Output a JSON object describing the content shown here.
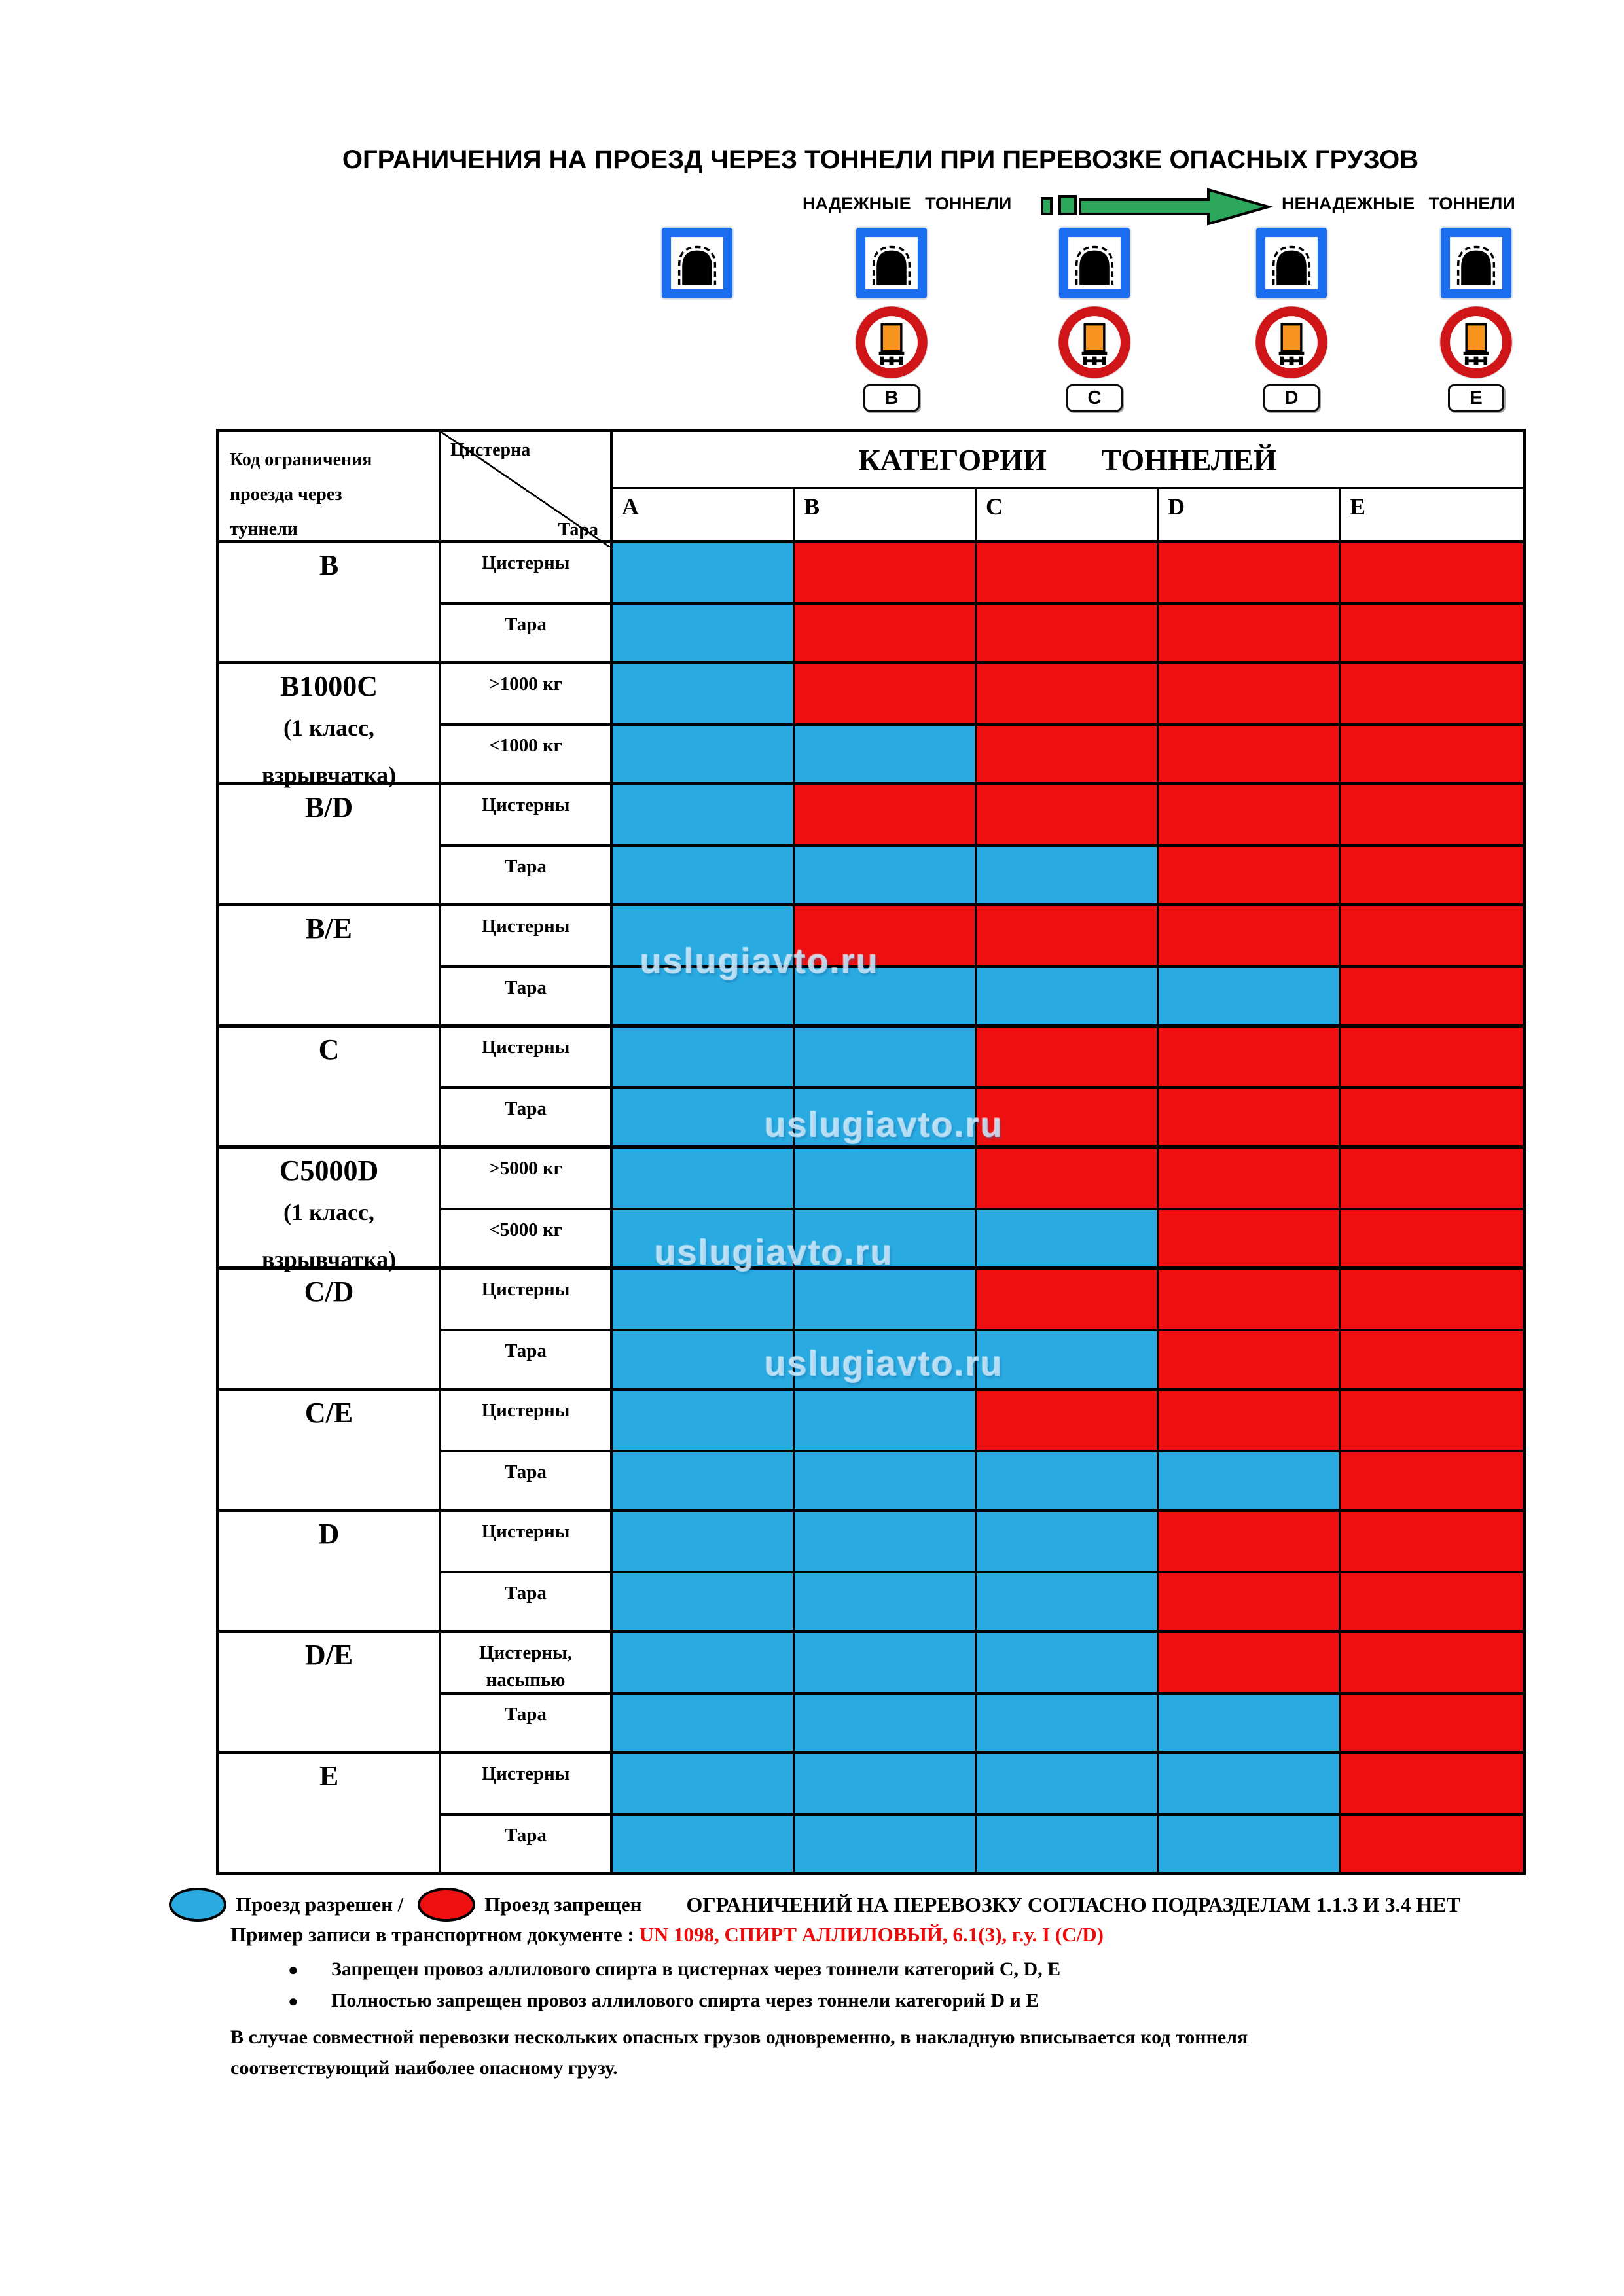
{
  "page": {
    "title": "ОГРАНИЧЕНИЯ НА ПРОЕЗД ЧЕРЕЗ ТОННЕЛИ ПРИ ПЕРЕВОЗКЕ ОПАСНЫХ ГРУЗОВ"
  },
  "header": {
    "safe_tunnels_label": "НАДЕЖНЫЕ ТОННЕЛИ",
    "unsafe_tunnels_label": "НЕНАДЕЖНЫЕ ТОННЕЛИ",
    "sign_plates": [
      "B",
      "C",
      "D",
      "E"
    ]
  },
  "table": {
    "corner_label": "Код ограничения\nпроезда через\nтуннели",
    "diag_top": "Цистерна",
    "diag_bottom": "Тара",
    "categories_title": "КАТЕГОРИИ ТОННЕЛЕЙ",
    "category_cols": [
      "A",
      "B",
      "C",
      "D",
      "E"
    ],
    "groups": [
      {
        "code": "B",
        "code_note": "",
        "rows": [
          {
            "label": "Цистерны",
            "cells": [
              1,
              0,
              0,
              0,
              0
            ]
          },
          {
            "label": "Тара",
            "cells": [
              1,
              0,
              0,
              0,
              0
            ]
          }
        ]
      },
      {
        "code": "B1000C",
        "code_note": "(1 класс,\nвзрывчатка)",
        "rows": [
          {
            "label": ">1000 кг",
            "cells": [
              1,
              0,
              0,
              0,
              0
            ]
          },
          {
            "label": "<1000 кг",
            "cells": [
              1,
              1,
              0,
              0,
              0
            ]
          }
        ]
      },
      {
        "code": "B/D",
        "code_note": "",
        "rows": [
          {
            "label": "Цистерны",
            "cells": [
              1,
              0,
              0,
              0,
              0
            ]
          },
          {
            "label": "Тара",
            "cells": [
              1,
              1,
              1,
              0,
              0
            ]
          }
        ]
      },
      {
        "code": "B/E",
        "code_note": "",
        "rows": [
          {
            "label": "Цистерны",
            "cells": [
              1,
              0,
              0,
              0,
              0
            ]
          },
          {
            "label": "Тара",
            "cells": [
              1,
              1,
              1,
              1,
              0
            ]
          }
        ]
      },
      {
        "code": "C",
        "code_note": "",
        "rows": [
          {
            "label": "Цистерны",
            "cells": [
              1,
              1,
              0,
              0,
              0
            ]
          },
          {
            "label": "Тара",
            "cells": [
              1,
              1,
              0,
              0,
              0
            ]
          }
        ]
      },
      {
        "code": "C5000D",
        "code_note": "(1 класс,\nвзрывчатка)",
        "rows": [
          {
            "label": ">5000 кг",
            "cells": [
              1,
              1,
              0,
              0,
              0
            ]
          },
          {
            "label": "<5000 кг",
            "cells": [
              1,
              1,
              1,
              0,
              0
            ]
          }
        ]
      },
      {
        "code": "C/D",
        "code_note": "",
        "rows": [
          {
            "label": "Цистерны",
            "cells": [
              1,
              1,
              0,
              0,
              0
            ]
          },
          {
            "label": "Тара",
            "cells": [
              1,
              1,
              1,
              0,
              0
            ]
          }
        ]
      },
      {
        "code": "C/E",
        "code_note": "",
        "rows": [
          {
            "label": "Цистерны",
            "cells": [
              1,
              1,
              0,
              0,
              0
            ]
          },
          {
            "label": "Тара",
            "cells": [
              1,
              1,
              1,
              1,
              0
            ]
          }
        ]
      },
      {
        "code": "D",
        "code_note": "",
        "rows": [
          {
            "label": "Цистерны",
            "cells": [
              1,
              1,
              1,
              0,
              0
            ]
          },
          {
            "label": "Тара",
            "cells": [
              1,
              1,
              1,
              0,
              0
            ]
          }
        ]
      },
      {
        "code": "D/E",
        "code_note": "",
        "rows": [
          {
            "label": "Цистерны,\nнасыпью",
            "cells": [
              1,
              1,
              1,
              0,
              0
            ]
          },
          {
            "label": "Тара",
            "cells": [
              1,
              1,
              1,
              1,
              0
            ]
          }
        ]
      },
      {
        "code": "E",
        "code_note": "",
        "rows": [
          {
            "label": "Цистерны",
            "cells": [
              1,
              1,
              1,
              1,
              0
            ]
          },
          {
            "label": "Тара",
            "cells": [
              1,
              1,
              1,
              1,
              0
            ]
          }
        ]
      }
    ]
  },
  "watermark": "uslugiavto.ru",
  "footer": {
    "allowed_label": "Проезд разрешен /",
    "prohibited_label": "Проезд запрещен",
    "no_restrictions": "ОГРАНИЧЕНИЙ НА ПЕРЕВОЗКУ СОГЛАСНО ПОДРАЗДЕЛАМ 1.1.3 И 3.4 НЕТ",
    "example_label": "Пример записи в транспортном документе : ",
    "example_value": "UN 1098, СПИРТ АЛЛИЛОВЫЙ, 6.1(3), г.у. I (C/D)",
    "bullets": [
      "Запрещен провоз аллилового спирта в цистернах через тоннели категорий C, D, E",
      "Полностью запрещен провоз аллилового спирта через тоннели категорий D и  E"
    ],
    "note": "В случае совместной перевозки нескольких опасных грузов одновременно, в накладную вписывается код тоннеля соответствующий наиболее опасному грузу."
  },
  "colors": {
    "allowed": "#29abe2",
    "prohibited": "#ee1010",
    "sign_blue": "#1b6ef0",
    "prohibition_red": "#cf1517",
    "truck_panel_orange": "#f7941d",
    "arrow_green": "#2ba65a",
    "example_red": "#ec0a0a"
  }
}
